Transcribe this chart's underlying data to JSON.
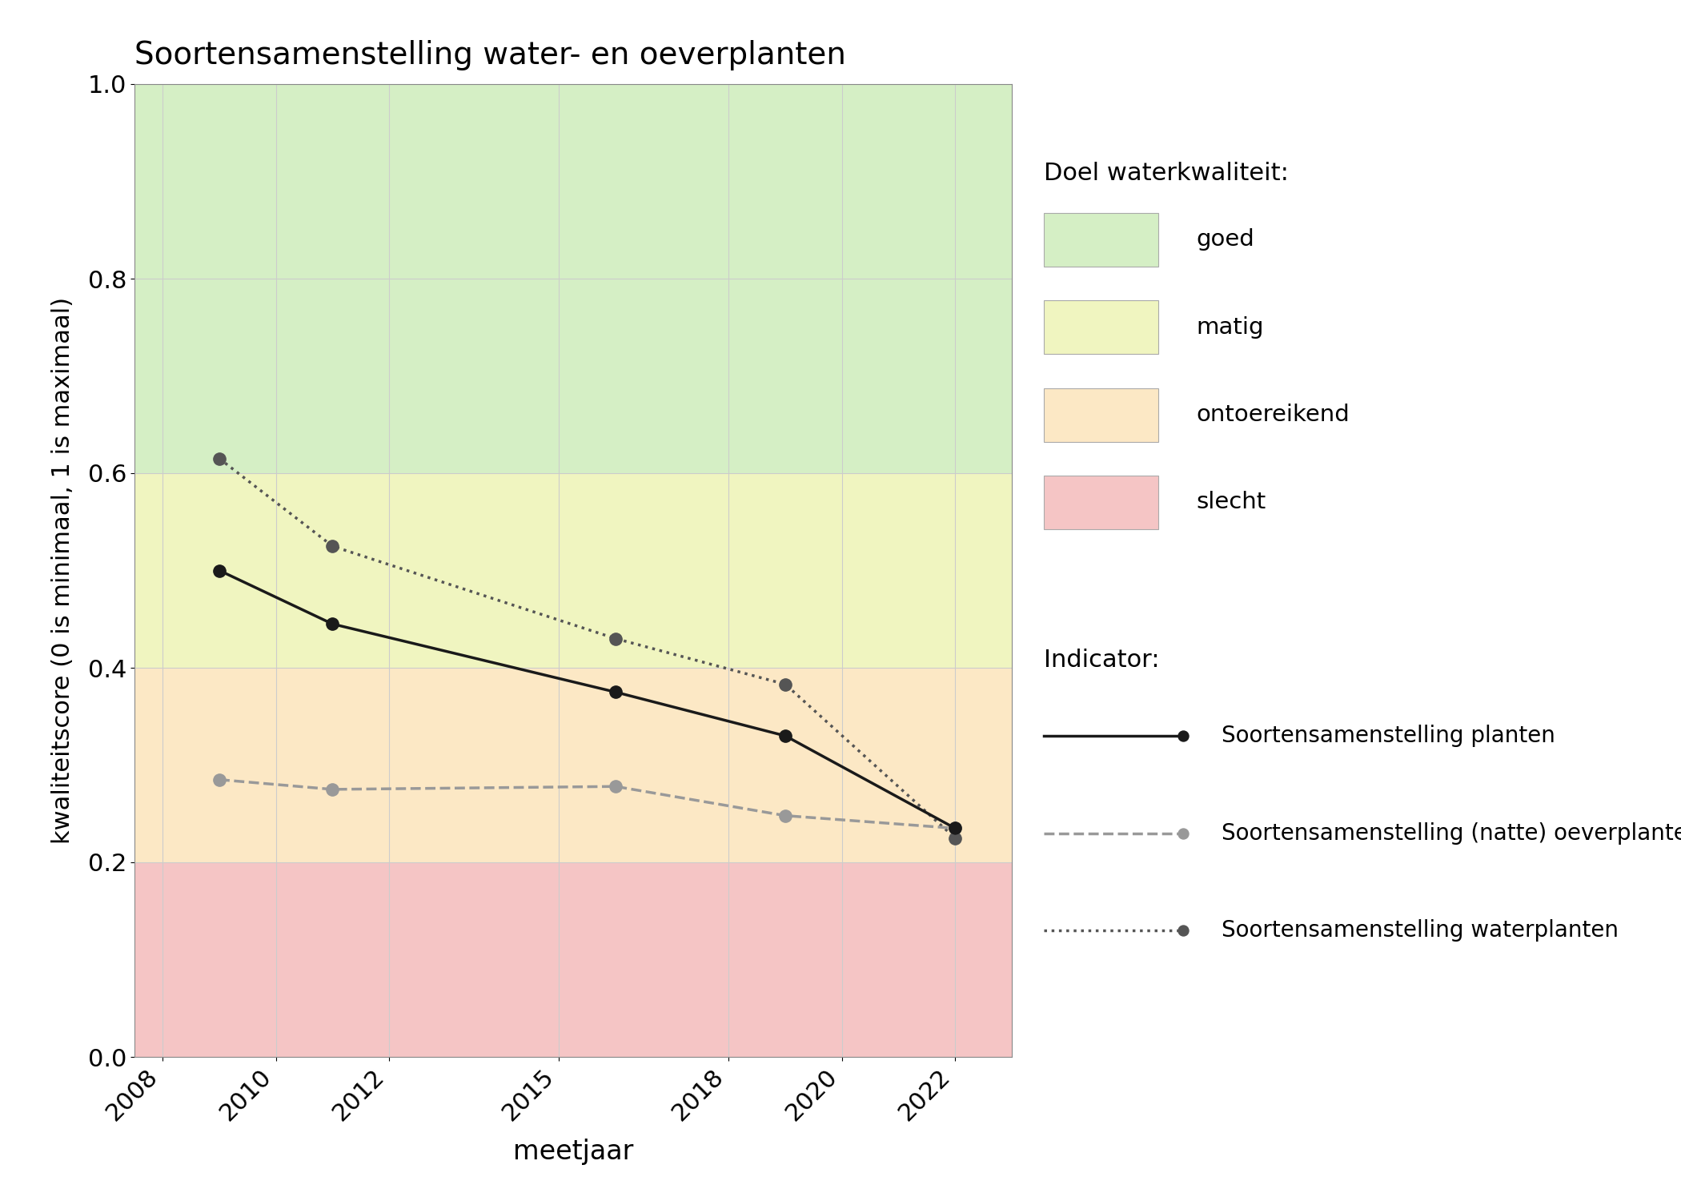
{
  "title": "Soortensamenstelling water- en oeverplanten",
  "xlabel": "meetjaar",
  "ylabel": "kwaliteitscore (0 is minimaal, 1 is maximaal)",
  "ylim": [
    0.0,
    1.0
  ],
  "xlim": [
    2007.5,
    2023.0
  ],
  "background_color": "#ffffff",
  "bg_zones": [
    {
      "ymin": 0.6,
      "ymax": 1.0,
      "color": "#d5efc5",
      "label": "goed"
    },
    {
      "ymin": 0.4,
      "ymax": 0.6,
      "color": "#f0f5c0",
      "label": "matig"
    },
    {
      "ymin": 0.2,
      "ymax": 0.4,
      "color": "#fce8c5",
      "label": "ontoereikend"
    },
    {
      "ymin": 0.0,
      "ymax": 0.2,
      "color": "#f5c5c5",
      "label": "slecht"
    }
  ],
  "series": [
    {
      "name": "Soortensamenstelling planten",
      "x": [
        2009,
        2011,
        2016,
        2019,
        2022
      ],
      "y": [
        0.5,
        0.445,
        0.375,
        0.33,
        0.235
      ],
      "color": "#1a1a1a",
      "linestyle": "-",
      "marker": "o",
      "markersize": 11,
      "linewidth": 2.5,
      "zorder": 5
    },
    {
      "name": "Soortensamenstelling (natte) oeverplanten",
      "x": [
        2009,
        2011,
        2016,
        2019,
        2022
      ],
      "y": [
        0.285,
        0.275,
        0.278,
        0.248,
        0.235
      ],
      "color": "#999999",
      "linestyle": "--",
      "marker": "o",
      "markersize": 11,
      "linewidth": 2.5,
      "zorder": 4
    },
    {
      "name": "Soortensamenstelling waterplanten",
      "x": [
        2009,
        2011,
        2016,
        2019,
        2022
      ],
      "y": [
        0.615,
        0.525,
        0.43,
        0.383,
        0.225
      ],
      "color": "#555555",
      "linestyle": ":",
      "marker": "o",
      "markersize": 11,
      "linewidth": 2.5,
      "zorder": 3
    }
  ],
  "xticks": [
    2008,
    2010,
    2012,
    2015,
    2018,
    2020,
    2022
  ],
  "yticks": [
    0.0,
    0.2,
    0.4,
    0.6,
    0.8,
    1.0
  ],
  "legend_quality_title": "Doel waterkwaliteit:",
  "legend_indicator_title": "Indicator:",
  "grid_color": "#cccccc",
  "grid_linewidth": 0.8
}
